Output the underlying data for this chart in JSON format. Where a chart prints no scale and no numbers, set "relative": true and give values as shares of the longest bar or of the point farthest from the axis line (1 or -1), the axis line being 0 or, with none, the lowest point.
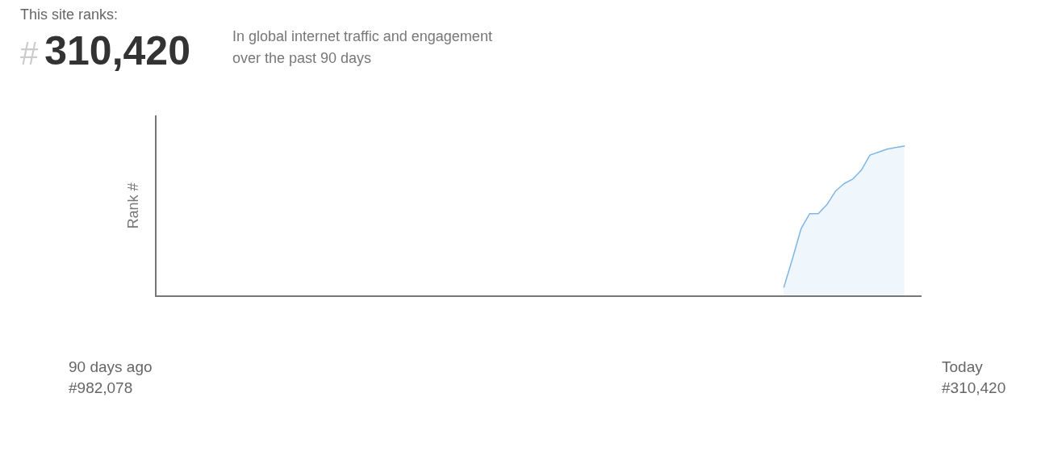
{
  "chart_data": {
    "type": "area",
    "title": "This site ranks:",
    "subtitle": "In global internet traffic and engagement over the past 90 days",
    "ylabel": "Rank #",
    "annotations": [
      "#310,420",
      "90 days ago",
      "#982,078",
      "Today",
      "#310,420"
    ],
    "categories": [
      null,
      null,
      null,
      null,
      null,
      null,
      null,
      null,
      null,
      null,
      null,
      null,
      null,
      null,
      null,
      null,
      null,
      null,
      null,
      null,
      null,
      null,
      null,
      null,
      null,
      null,
      null,
      null,
      null,
      null,
      null,
      null,
      null,
      null,
      null,
      null,
      null,
      null,
      null,
      null,
      null,
      null,
      null,
      null,
      null,
      null,
      null,
      null,
      null,
      null,
      null,
      null,
      null,
      null,
      null,
      null,
      null,
      null,
      null,
      null,
      null,
      null,
      null,
      null,
      null,
      null,
      null,
      null,
      null,
      null,
      null,
      null,
      null,
      null,
      null,
      null,
      null,
      null,
      null,
      null,
      null,
      null,
      null,
      null,
      null,
      null,
      null,
      null,
      null,
      null
    ],
    "relative": true,
    "series": [
      {
        "color": "#7fb6e6",
        "values": [
          null,
          null,
          null,
          null,
          null,
          null,
          null,
          null,
          null,
          null,
          null,
          null,
          null,
          null,
          null,
          null,
          null,
          null,
          null,
          null,
          null,
          null,
          null,
          null,
          null,
          null,
          null,
          null,
          null,
          null,
          null,
          null,
          null,
          null,
          null,
          null,
          null,
          null,
          null,
          null,
          null,
          null,
          null,
          null,
          null,
          null,
          null,
          null,
          null,
          null,
          null,
          null,
          null,
          null,
          null,
          null,
          null,
          null,
          null,
          null,
          null,
          null,
          null,
          null,
          null,
          null,
          null,
          null,
          null,
          null,
          null,
          null,
          null,
          0.06,
          0.25,
          0.45,
          0.55,
          0.55,
          0.61,
          0.7,
          0.75,
          0.78,
          0.84,
          0.94,
          0.96,
          0.98,
          0.99,
          1,
          null,
          null
        ]
      }
    ]
  }
}
